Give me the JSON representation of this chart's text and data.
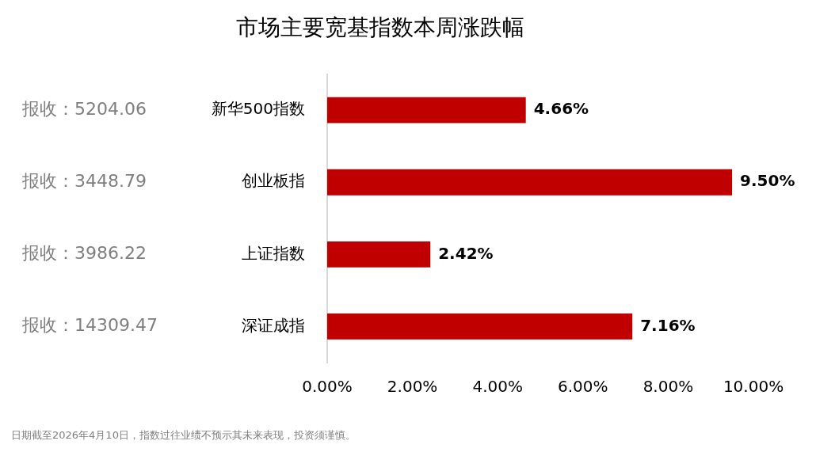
{
  "chart_data": {
    "type": "bar",
    "orientation": "horizontal",
    "title": "市场主要宽基指数本周涨跌幅",
    "categories": [
      "新华500指数",
      "创业板指",
      "上证指数",
      "深证成指"
    ],
    "values": [
      4.66,
      9.5,
      2.42,
      7.16
    ],
    "value_labels": [
      "4.66%",
      "9.50%",
      "2.42%",
      "7.16%"
    ],
    "color": "#c00000",
    "xlim": [
      0,
      10
    ],
    "xticks": [
      {
        "value": 0,
        "label": "0.00%"
      },
      {
        "value": 2,
        "label": "2.00%"
      },
      {
        "value": 4,
        "label": "4.00%"
      },
      {
        "value": 6,
        "label": "6.00%"
      },
      {
        "value": 8,
        "label": "8.00%"
      },
      {
        "value": 10,
        "label": "10.00%"
      }
    ],
    "grid": false,
    "legend": false,
    "annotations": [
      "报收：5204.06",
      "报收：3448.79",
      "报收：3986.22",
      "报收：14309.47",
      "日期截至2026年4月10日，指数过往业绩不预示其未来表现，投资须谨慎。"
    ]
  }
}
